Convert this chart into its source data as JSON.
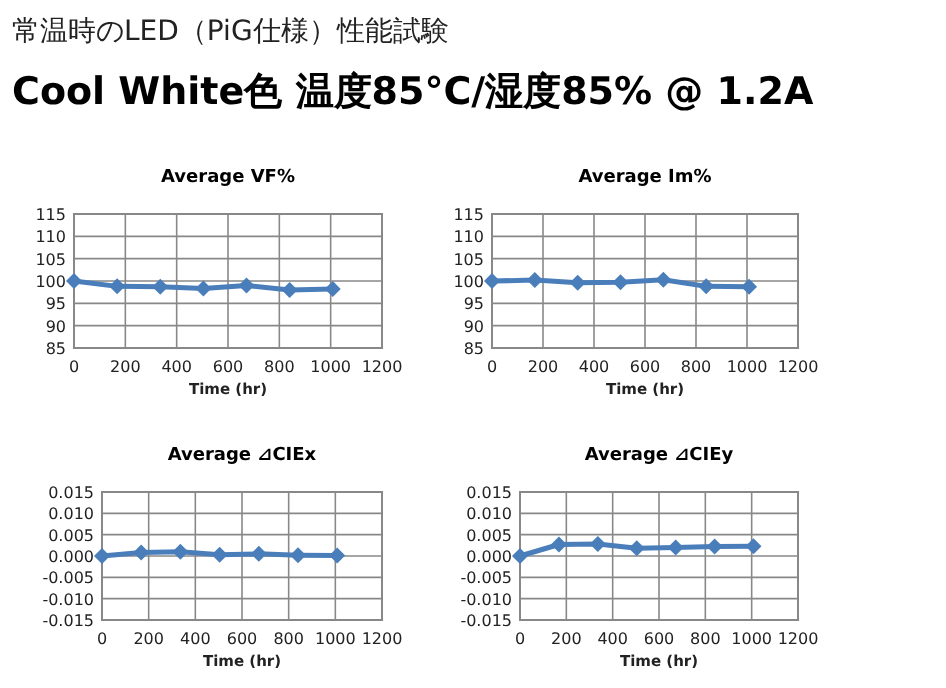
{
  "chart_data": [
    {
      "type": "other",
      "title": "Cool White色 温度85°C/湿度85% @ 1.2A",
      "subtitle": "常温時のLED（PiG仕様）性能試験"
    },
    {
      "type": "line",
      "title": "Average VF%",
      "xlabel": "Time (hr)",
      "x": [
        0,
        168,
        336,
        504,
        672,
        840,
        1008
      ],
      "series": [
        {
          "color": "#4a7ebb",
          "values": [
            100,
            98.8,
            98.7,
            98.3,
            99,
            98,
            98.2
          ]
        }
      ],
      "xlim": [
        0,
        1200
      ],
      "xticks": [
        0,
        200,
        400,
        600,
        800,
        1000,
        1200
      ],
      "ylim": [
        85,
        115
      ],
      "yticks": [
        85,
        90,
        95,
        100,
        105,
        110,
        115
      ],
      "grid": true,
      "marker": "diamond"
    },
    {
      "type": "line",
      "title": "Average Im%",
      "xlabel": "Time (hr)",
      "x": [
        0,
        168,
        336,
        504,
        672,
        840,
        1008
      ],
      "series": [
        {
          "color": "#4a7ebb",
          "values": [
            100,
            100.2,
            99.6,
            99.7,
            100.3,
            98.8,
            98.7
          ]
        }
      ],
      "xlim": [
        0,
        1200
      ],
      "xticks": [
        0,
        200,
        400,
        600,
        800,
        1000,
        1200
      ],
      "ylim": [
        85,
        115
      ],
      "yticks": [
        85,
        90,
        95,
        100,
        105,
        110,
        115
      ],
      "grid": true,
      "marker": "diamond"
    },
    {
      "type": "line",
      "title": "Average ⊿CIEx",
      "xlabel": "Time (hr)",
      "x": [
        0,
        168,
        336,
        504,
        672,
        840,
        1008
      ],
      "series": [
        {
          "color": "#4a7ebb",
          "values": [
            0,
            0.0008,
            0.001,
            0.0003,
            0.0005,
            0.0002,
            0.0001
          ]
        }
      ],
      "xlim": [
        0,
        1200
      ],
      "xticks": [
        0,
        200,
        400,
        600,
        800,
        1000,
        1200
      ],
      "ylim": [
        -0.015,
        0.015
      ],
      "yticks": [
        {
          "value": -0.015,
          "label": "-0.015"
        },
        {
          "value": -0.01,
          "label": "-0.010"
        },
        {
          "value": -0.005,
          "label": "-0.005"
        },
        {
          "value": 0,
          "label": "0.000"
        },
        {
          "value": 0.005,
          "label": "0.005"
        },
        {
          "value": 0.01,
          "label": "0.010"
        },
        {
          "value": 0.015,
          "label": "0.015"
        }
      ],
      "grid": true,
      "marker": "diamond"
    },
    {
      "type": "line",
      "title": "Average ⊿CIEy",
      "xlabel": "Time (hr)",
      "x": [
        0,
        168,
        336,
        504,
        672,
        840,
        1008
      ],
      "series": [
        {
          "color": "#4a7ebb",
          "values": [
            0,
            0.0027,
            0.0028,
            0.0018,
            0.002,
            0.0022,
            0.0023
          ]
        }
      ],
      "xlim": [
        0,
        1200
      ],
      "xticks": [
        0,
        200,
        400,
        600,
        800,
        1000,
        1200
      ],
      "ylim": [
        -0.015,
        0.015
      ],
      "yticks": [
        {
          "value": -0.015,
          "label": "-0.015"
        },
        {
          "value": -0.01,
          "label": "-0.010"
        },
        {
          "value": -0.005,
          "label": "-0.005"
        },
        {
          "value": 0,
          "label": "0.000"
        },
        {
          "value": 0.005,
          "label": "0.005"
        },
        {
          "value": 0.01,
          "label": "0.010"
        },
        {
          "value": 0.015,
          "label": "0.015"
        }
      ],
      "grid": true,
      "marker": "diamond"
    }
  ]
}
